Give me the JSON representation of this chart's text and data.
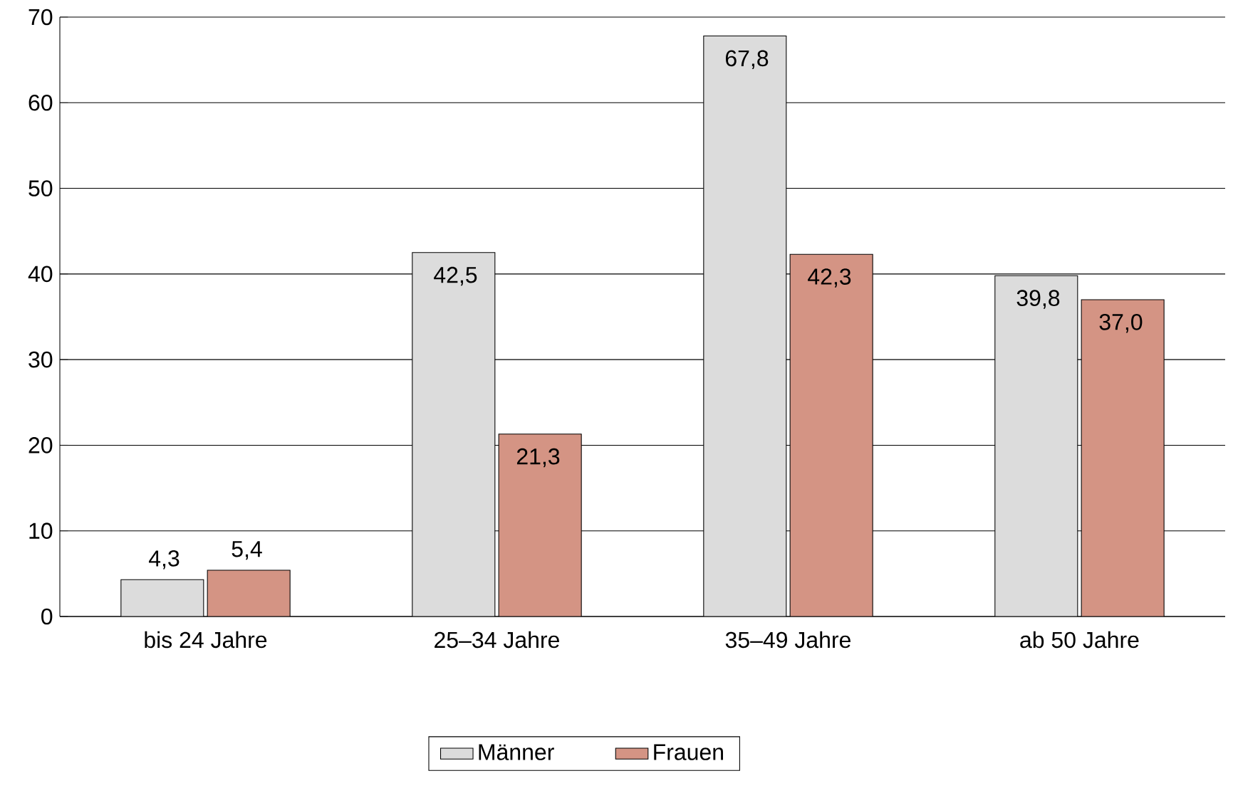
{
  "chart_data": {
    "type": "bar",
    "categories": [
      "bis 24 Jahre",
      "25–34 Jahre",
      "35–49 Jahre",
      "ab 50 Jahre"
    ],
    "series": [
      {
        "name": "Männer",
        "color": "#dcdcdc",
        "values": [
          4.3,
          42.5,
          67.8,
          39.8
        ],
        "value_labels": [
          "4,3",
          "42,5",
          "67,8",
          "39,8"
        ]
      },
      {
        "name": "Frauen",
        "color": "#d49484",
        "values": [
          5.4,
          21.3,
          42.3,
          37.0
        ],
        "value_labels": [
          "5,4",
          "21,3",
          "42,3",
          "37,0"
        ]
      }
    ],
    "ylim": [
      0,
      70
    ],
    "yticks": [
      0,
      10,
      20,
      30,
      40,
      50,
      60,
      70
    ],
    "grid": "y",
    "legend": "bottom"
  }
}
